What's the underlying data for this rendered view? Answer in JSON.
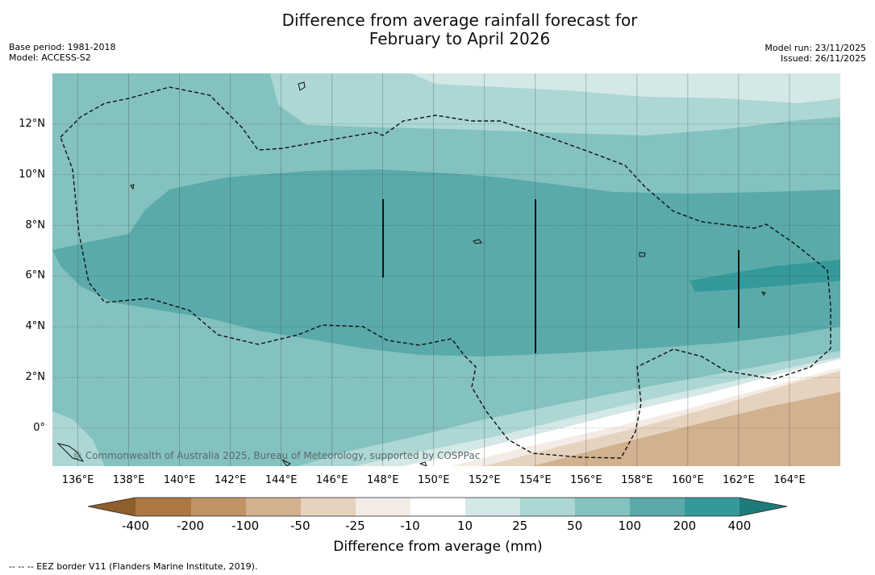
{
  "title": {
    "line1": "Difference from average rainfall forecast for",
    "line2": "February to April 2026"
  },
  "meta_left": {
    "base_period": "Base period: 1981-2018",
    "model": "Model: ACCESS-S2"
  },
  "meta_right": {
    "model_run": "Model run: 23/11/2025",
    "issued": "Issued: 26/11/2025"
  },
  "map": {
    "lat_labels": [
      "12°N",
      "10°N",
      "8°N",
      "6°N",
      "4°N",
      "2°N",
      "0°"
    ],
    "lon_labels": [
      "136°E",
      "138°E",
      "140°E",
      "142°E",
      "144°E",
      "146°E",
      "148°E",
      "150°E",
      "152°E",
      "154°E",
      "156°E",
      "158°E",
      "160°E",
      "162°E",
      "164°E"
    ],
    "lat_values": [
      12,
      10,
      8,
      6,
      4,
      2,
      0
    ],
    "lon_values": [
      136,
      138,
      140,
      142,
      144,
      146,
      148,
      150,
      152,
      154,
      156,
      158,
      160,
      162,
      164
    ],
    "extent": {
      "lon_min": 135.0,
      "lon_max": 166.0,
      "lat_min": -1.5,
      "lat_max": 14.0
    },
    "copyright": "© Commonwealth of Australia 2025, Bureau of Meteorology, supported by COSPPac"
  },
  "colorbar": {
    "ticks": [
      "-400",
      "-200",
      "-100",
      "-50",
      "-25",
      "-10",
      "10",
      "25",
      "50",
      "100",
      "200",
      "400"
    ],
    "colors": {
      "lt_neg400": "#8e5e2d",
      "neg400_neg200": "#ad7741",
      "neg200_neg100": "#c19466",
      "neg100_neg50": "#d2b18f",
      "neg50_neg25": "#e6d3bf",
      "neg25_neg10": "#f3ece6",
      "neg10_10": "#ffffff",
      "p10_25": "#d4e8e7",
      "p25_50": "#acd7d5",
      "p50_100": "#84c2bf",
      "p100_200": "#5aaaaa",
      "p200_400": "#35999a",
      "gt_400": "#1f7a7a"
    },
    "label": "Difference from average (mm)"
  },
  "footnote": "--  --  -- EEZ border V11 (Flanders Marine Institute, 2019)."
}
